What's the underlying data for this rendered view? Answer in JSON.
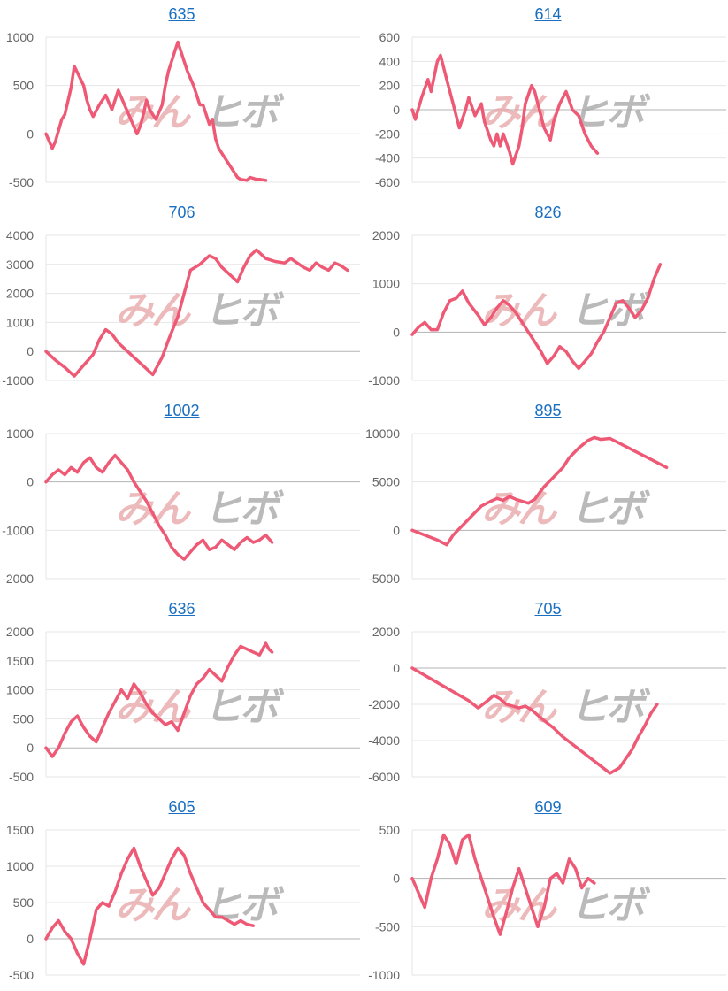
{
  "watermark": {
    "part1": "みん",
    "part2": "ヒボ"
  },
  "colors": {
    "line": "#ee5a76",
    "title": "#1a6fc0",
    "grid": "#e6e6e6",
    "zero_line": "#b3b3b3",
    "tick": "#666666"
  },
  "chart_data": [
    {
      "type": "line",
      "title": "635",
      "ylim": [
        -500,
        1000
      ],
      "yticks": [
        -500,
        0,
        500,
        1000
      ],
      "xlim": [
        0,
        100
      ],
      "grid": true,
      "series": [
        {
          "x": [
            0,
            2,
            3,
            5,
            6,
            8,
            9,
            12,
            13,
            14,
            15,
            17,
            19,
            21,
            23,
            25,
            27,
            29,
            30,
            31,
            32,
            33,
            35,
            37,
            38,
            39,
            41,
            42,
            44,
            45,
            47,
            48,
            49,
            50,
            51,
            52,
            53,
            54,
            55,
            56,
            57,
            58,
            60,
            61,
            62,
            64,
            65,
            67,
            68,
            70
          ],
          "y": [
            0,
            -150,
            -80,
            150,
            200,
            480,
            700,
            500,
            350,
            250,
            180,
            300,
            400,
            250,
            450,
            300,
            150,
            0,
            80,
            200,
            350,
            250,
            150,
            300,
            500,
            650,
            850,
            950,
            750,
            650,
            500,
            400,
            300,
            300,
            200,
            100,
            150,
            -50,
            -150,
            -200,
            -250,
            -300,
            -400,
            -450,
            -470,
            -480,
            -450,
            -470,
            -470,
            -480
          ]
        }
      ]
    },
    {
      "type": "line",
      "title": "614",
      "ylim": [
        -600,
        600
      ],
      "yticks": [
        -600,
        -400,
        -200,
        0,
        200,
        400,
        600
      ],
      "xlim": [
        0,
        100
      ],
      "grid": true,
      "series": [
        {
          "x": [
            0,
            1,
            3,
            5,
            6,
            8,
            9,
            11,
            13,
            15,
            17,
            18,
            20,
            22,
            23,
            25,
            26,
            27,
            28,
            29,
            31,
            32,
            34,
            35,
            36,
            38,
            39,
            41,
            42,
            44,
            45,
            47,
            49,
            51,
            53,
            55,
            57,
            59
          ],
          "y": [
            0,
            -80,
            100,
            250,
            150,
            400,
            450,
            250,
            50,
            -150,
            0,
            100,
            -50,
            50,
            -100,
            -250,
            -300,
            -200,
            -300,
            -200,
            -350,
            -450,
            -300,
            -150,
            50,
            200,
            150,
            -50,
            -150,
            -250,
            -100,
            50,
            150,
            0,
            -50,
            -200,
            -300,
            -360
          ]
        }
      ]
    },
    {
      "type": "line",
      "title": "706",
      "ylim": [
        -1000,
        4000
      ],
      "yticks": [
        -1000,
        0,
        1000,
        2000,
        3000,
        4000
      ],
      "xlim": [
        0,
        100
      ],
      "grid": true,
      "series": [
        {
          "x": [
            0,
            3,
            6,
            9,
            11,
            13,
            15,
            17,
            19,
            21,
            23,
            26,
            28,
            31,
            34,
            37,
            39,
            42,
            44,
            46,
            49,
            52,
            54,
            56,
            58,
            61,
            63,
            65,
            67,
            70,
            73,
            76,
            78,
            80,
            82,
            84,
            86,
            88,
            90,
            92,
            94,
            96
          ],
          "y": [
            0,
            -300,
            -550,
            -850,
            -600,
            -350,
            -100,
            400,
            750,
            600,
            300,
            0,
            -200,
            -500,
            -800,
            -200,
            400,
            1200,
            2000,
            2800,
            3000,
            3300,
            3200,
            2900,
            2700,
            2400,
            2900,
            3300,
            3500,
            3200,
            3100,
            3050,
            3200,
            3050,
            2900,
            2800,
            3050,
            2900,
            2800,
            3050,
            2950,
            2800
          ]
        }
      ]
    },
    {
      "type": "line",
      "title": "826",
      "ylim": [
        -1000,
        2000
      ],
      "yticks": [
        -1000,
        0,
        1000,
        2000
      ],
      "xlim": [
        0,
        100
      ],
      "grid": true,
      "series": [
        {
          "x": [
            0,
            2,
            4,
            6,
            8,
            10,
            12,
            14,
            16,
            18,
            21,
            23,
            25,
            27,
            29,
            31,
            33,
            35,
            37,
            39,
            41,
            43,
            45,
            47,
            49,
            51,
            53,
            55,
            57,
            59,
            61,
            63,
            65,
            67,
            69,
            71,
            73,
            75,
            77,
            79
          ],
          "y": [
            -50,
            100,
            200,
            50,
            50,
            400,
            650,
            700,
            850,
            600,
            350,
            150,
            300,
            500,
            650,
            550,
            400,
            200,
            0,
            -200,
            -400,
            -650,
            -500,
            -300,
            -400,
            -600,
            -750,
            -600,
            -450,
            -200,
            0,
            300,
            600,
            650,
            500,
            300,
            450,
            700,
            1100,
            1400
          ]
        }
      ]
    },
    {
      "type": "line",
      "title": "1002",
      "ylim": [
        -2000,
        1000
      ],
      "yticks": [
        -2000,
        -1000,
        0,
        1000
      ],
      "xlim": [
        0,
        100
      ],
      "grid": true,
      "series": [
        {
          "x": [
            0,
            2,
            4,
            6,
            8,
            10,
            12,
            14,
            16,
            18,
            20,
            22,
            24,
            26,
            28,
            30,
            32,
            34,
            36,
            38,
            40,
            42,
            44,
            46,
            48,
            50,
            52,
            54,
            56,
            58,
            60,
            62,
            64,
            66,
            68,
            70,
            72
          ],
          "y": [
            0,
            150,
            250,
            150,
            300,
            200,
            400,
            500,
            300,
            200,
            400,
            550,
            400,
            250,
            0,
            -200,
            -400,
            -650,
            -900,
            -1100,
            -1350,
            -1500,
            -1600,
            -1450,
            -1300,
            -1200,
            -1400,
            -1350,
            -1200,
            -1300,
            -1400,
            -1250,
            -1150,
            -1250,
            -1200,
            -1100,
            -1250
          ]
        }
      ]
    },
    {
      "type": "line",
      "title": "895",
      "ylim": [
        -5000,
        10000
      ],
      "yticks": [
        -5000,
        0,
        5000,
        10000
      ],
      "xlim": [
        0,
        100
      ],
      "grid": true,
      "series": [
        {
          "x": [
            0,
            4,
            8,
            11,
            13,
            16,
            19,
            22,
            25,
            27,
            29,
            31,
            33,
            35,
            37,
            39,
            42,
            45,
            48,
            50,
            53,
            56,
            58,
            60,
            63,
            66,
            69,
            72,
            75,
            78,
            81
          ],
          "y": [
            0,
            -500,
            -1000,
            -1500,
            -500,
            500,
            1500,
            2500,
            3000,
            3300,
            3100,
            3500,
            3200,
            3000,
            2800,
            3200,
            4500,
            5500,
            6500,
            7500,
            8500,
            9300,
            9600,
            9400,
            9500,
            9000,
            8500,
            8000,
            7500,
            7000,
            6500
          ]
        }
      ]
    },
    {
      "type": "line",
      "title": "636",
      "ylim": [
        -500,
        2000
      ],
      "yticks": [
        -500,
        0,
        500,
        1000,
        1500,
        2000
      ],
      "xlim": [
        0,
        100
      ],
      "grid": true,
      "series": [
        {
          "x": [
            0,
            2,
            4,
            6,
            8,
            10,
            12,
            14,
            16,
            18,
            20,
            22,
            24,
            26,
            28,
            30,
            32,
            34,
            36,
            38,
            40,
            42,
            44,
            46,
            48,
            50,
            52,
            54,
            56,
            58,
            60,
            62,
            64,
            66,
            68,
            70,
            71,
            72
          ],
          "y": [
            0,
            -150,
            0,
            250,
            450,
            550,
            350,
            200,
            100,
            350,
            600,
            800,
            1000,
            850,
            1100,
            950,
            750,
            600,
            500,
            400,
            450,
            300,
            600,
            900,
            1100,
            1200,
            1350,
            1250,
            1150,
            1400,
            1600,
            1750,
            1700,
            1650,
            1600,
            1800,
            1700,
            1650
          ]
        }
      ]
    },
    {
      "type": "line",
      "title": "705",
      "ylim": [
        -6000,
        2000
      ],
      "yticks": [
        -6000,
        -4000,
        -2000,
        0,
        2000
      ],
      "xlim": [
        0,
        100
      ],
      "grid": true,
      "series": [
        {
          "x": [
            0,
            3,
            6,
            9,
            12,
            15,
            18,
            21,
            24,
            26,
            28,
            30,
            32,
            34,
            36,
            38,
            40,
            42,
            45,
            48,
            51,
            54,
            57,
            60,
            63,
            66,
            68,
            70,
            72,
            74,
            76,
            78
          ],
          "y": [
            0,
            -300,
            -600,
            -900,
            -1200,
            -1500,
            -1800,
            -2200,
            -1800,
            -1500,
            -1700,
            -2000,
            -2100,
            -2200,
            -2100,
            -2300,
            -2600,
            -2900,
            -3300,
            -3800,
            -4200,
            -4600,
            -5000,
            -5400,
            -5800,
            -5500,
            -5000,
            -4500,
            -3800,
            -3200,
            -2500,
            -2000
          ]
        }
      ]
    },
    {
      "type": "line",
      "title": "605",
      "ylim": [
        -500,
        1500
      ],
      "yticks": [
        -500,
        0,
        500,
        1000,
        1500
      ],
      "xlim": [
        0,
        100
      ],
      "grid": true,
      "series": [
        {
          "x": [
            0,
            2,
            4,
            6,
            8,
            10,
            12,
            14,
            16,
            18,
            20,
            22,
            24,
            26,
            28,
            30,
            32,
            34,
            36,
            38,
            40,
            42,
            44,
            46,
            48,
            50,
            52,
            54,
            56,
            58,
            60,
            62,
            64,
            66
          ],
          "y": [
            0,
            150,
            250,
            100,
            0,
            -200,
            -350,
            0,
            400,
            500,
            450,
            650,
            900,
            1100,
            1250,
            1000,
            800,
            600,
            700,
            900,
            1100,
            1250,
            1150,
            900,
            700,
            500,
            400,
            300,
            300,
            250,
            200,
            250,
            200,
            180
          ]
        }
      ]
    },
    {
      "type": "line",
      "title": "609",
      "ylim": [
        -1000,
        500
      ],
      "yticks": [
        -1000,
        -500,
        0,
        500
      ],
      "xlim": [
        0,
        100
      ],
      "grid": true,
      "series": [
        {
          "x": [
            0,
            2,
            4,
            6,
            8,
            10,
            12,
            14,
            16,
            18,
            20,
            22,
            24,
            26,
            28,
            30,
            32,
            34,
            36,
            38,
            40,
            42,
            44,
            46,
            48,
            50,
            52,
            54,
            56,
            58
          ],
          "y": [
            0,
            -150,
            -300,
            0,
            200,
            450,
            350,
            150,
            400,
            450,
            200,
            0,
            -200,
            -400,
            -580,
            -350,
            -100,
            100,
            -100,
            -300,
            -500,
            -300,
            0,
            50,
            -50,
            200,
            100,
            -100,
            0,
            -50
          ]
        }
      ]
    }
  ]
}
